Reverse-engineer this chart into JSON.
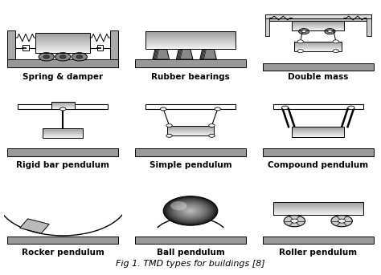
{
  "title": "Fig 1. TMD types for buildings [8]",
  "labels": [
    "Spring & damper",
    "Rubber bearings",
    "Double mass",
    "Rigid bar pendulum",
    "Simple pendulum",
    "Compound pendulum",
    "Rocker pendulum",
    "Ball pendulum",
    "Roller pendulum"
  ],
  "label_fontsize": 7.5,
  "title_fontsize": 8,
  "bg_color": "#ffffff",
  "slab_gray": "#999999",
  "mass_mid": "#bbbbbb",
  "mass_light": "#eeeeee",
  "wall_gray": "#aaaaaa"
}
